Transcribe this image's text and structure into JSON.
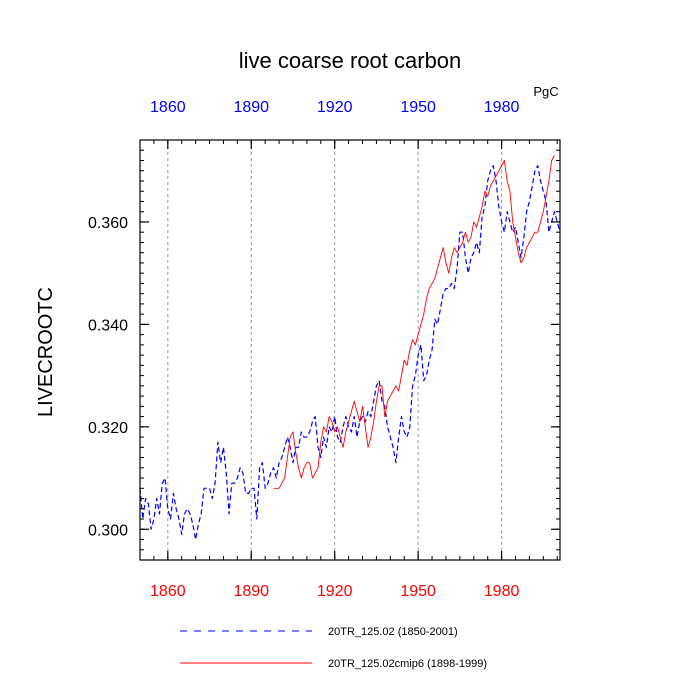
{
  "chart_data": {
    "type": "line",
    "title": "live coarse root carbon",
    "units": "PgC",
    "ylabel": "LIVECROOTC",
    "xlim": [
      1850,
      2001
    ],
    "ylim": [
      0.294,
      0.376
    ],
    "x_ticks": [
      1860,
      1890,
      1920,
      1950,
      1980
    ],
    "x_tick_labels": [
      "1860",
      "1890",
      "1920",
      "1950",
      "1980"
    ],
    "y_ticks": [
      0.3,
      0.32,
      0.34,
      0.36
    ],
    "y_tick_labels": [
      "0.300",
      "0.320",
      "0.340",
      "0.360"
    ],
    "y_minor_step": 0.002,
    "x_minor_step": 5,
    "grid": "vertical-dashed-at-major-x",
    "colors": {
      "top_tick_labels": "#0000ff",
      "bottom_tick_labels": "#ff0000",
      "series1": "#0000ff",
      "series2": "#ff0000",
      "grid": "#999999"
    },
    "legend_placement": "bottom",
    "series": [
      {
        "name": "20TR_125.02 (1850-2001)",
        "style": "dashed",
        "x": [
          1850,
          1851,
          1852,
          1853,
          1854,
          1855,
          1856,
          1857,
          1858,
          1859,
          1860,
          1861,
          1862,
          1863,
          1864,
          1865,
          1866,
          1867,
          1868,
          1869,
          1870,
          1871,
          1872,
          1873,
          1874,
          1875,
          1876,
          1877,
          1878,
          1879,
          1880,
          1881,
          1882,
          1883,
          1884,
          1885,
          1886,
          1887,
          1888,
          1889,
          1890,
          1891,
          1892,
          1893,
          1894,
          1895,
          1896,
          1897,
          1898,
          1899,
          1900,
          1901,
          1902,
          1903,
          1904,
          1905,
          1906,
          1907,
          1908,
          1909,
          1910,
          1911,
          1912,
          1913,
          1914,
          1915,
          1916,
          1917,
          1918,
          1919,
          1920,
          1921,
          1922,
          1923,
          1924,
          1925,
          1926,
          1927,
          1928,
          1929,
          1930,
          1931,
          1932,
          1933,
          1934,
          1935,
          1936,
          1937,
          1938,
          1939,
          1940,
          1941,
          1942,
          1943,
          1944,
          1945,
          1946,
          1947,
          1948,
          1949,
          1950,
          1951,
          1952,
          1953,
          1954,
          1955,
          1956,
          1957,
          1958,
          1959,
          1960,
          1961,
          1962,
          1963,
          1964,
          1965,
          1966,
          1967,
          1968,
          1969,
          1970,
          1971,
          1972,
          1973,
          1974,
          1975,
          1976,
          1977,
          1978,
          1979,
          1980,
          1981,
          1982,
          1983,
          1984,
          1985,
          1986,
          1987,
          1988,
          1989,
          1990,
          1991,
          1992,
          1993,
          1994,
          1995,
          1996,
          1997,
          1998,
          1999,
          2000,
          2001
        ],
        "values": [
          0.308,
          0.302,
          0.306,
          0.305,
          0.3,
          0.302,
          0.306,
          0.303,
          0.309,
          0.31,
          0.304,
          0.302,
          0.307,
          0.304,
          0.302,
          0.299,
          0.303,
          0.304,
          0.303,
          0.301,
          0.298,
          0.301,
          0.303,
          0.308,
          0.308,
          0.308,
          0.306,
          0.309,
          0.317,
          0.313,
          0.316,
          0.311,
          0.303,
          0.309,
          0.309,
          0.31,
          0.312,
          0.311,
          0.307,
          0.307,
          0.308,
          0.308,
          0.302,
          0.312,
          0.313,
          0.308,
          0.309,
          0.311,
          0.312,
          0.31,
          0.313,
          0.314,
          0.316,
          0.318,
          0.316,
          0.313,
          0.316,
          0.316,
          0.319,
          0.318,
          0.318,
          0.319,
          0.321,
          0.322,
          0.316,
          0.314,
          0.318,
          0.316,
          0.32,
          0.319,
          0.322,
          0.318,
          0.317,
          0.32,
          0.322,
          0.32,
          0.319,
          0.322,
          0.318,
          0.321,
          0.322,
          0.321,
          0.323,
          0.322,
          0.325,
          0.328,
          0.329,
          0.325,
          0.324,
          0.32,
          0.318,
          0.316,
          0.313,
          0.318,
          0.322,
          0.319,
          0.318,
          0.32,
          0.328,
          0.33,
          0.334,
          0.336,
          0.329,
          0.33,
          0.333,
          0.335,
          0.341,
          0.34,
          0.343,
          0.346,
          0.347,
          0.347,
          0.348,
          0.347,
          0.351,
          0.358,
          0.358,
          0.353,
          0.35,
          0.353,
          0.354,
          0.356,
          0.354,
          0.361,
          0.363,
          0.368,
          0.37,
          0.371,
          0.368,
          0.363,
          0.36,
          0.358,
          0.362,
          0.36,
          0.358,
          0.359,
          0.356,
          0.353,
          0.357,
          0.362,
          0.364,
          0.367,
          0.37,
          0.371,
          0.368,
          0.366,
          0.364,
          0.358,
          0.36,
          0.362,
          0.36,
          0.358
        ]
      },
      {
        "name": "20TR_125.02cmip6 (1898-1999)",
        "style": "solid",
        "x": [
          1898,
          1899,
          1900,
          1901,
          1902,
          1903,
          1904,
          1905,
          1906,
          1907,
          1908,
          1909,
          1910,
          1911,
          1912,
          1913,
          1914,
          1915,
          1916,
          1917,
          1918,
          1919,
          1920,
          1921,
          1922,
          1923,
          1924,
          1925,
          1926,
          1927,
          1928,
          1929,
          1930,
          1931,
          1932,
          1933,
          1934,
          1935,
          1936,
          1937,
          1938,
          1939,
          1940,
          1941,
          1942,
          1943,
          1944,
          1945,
          1946,
          1947,
          1948,
          1949,
          1950,
          1951,
          1952,
          1953,
          1954,
          1955,
          1956,
          1957,
          1958,
          1959,
          1960,
          1961,
          1962,
          1963,
          1964,
          1965,
          1966,
          1967,
          1968,
          1969,
          1970,
          1971,
          1972,
          1973,
          1974,
          1975,
          1976,
          1977,
          1978,
          1979,
          1980,
          1981,
          1982,
          1983,
          1984,
          1985,
          1986,
          1987,
          1988,
          1989,
          1990,
          1991,
          1992,
          1993,
          1994,
          1995,
          1996,
          1997,
          1998,
          1999
        ],
        "values": [
          0.308,
          0.308,
          0.308,
          0.309,
          0.31,
          0.314,
          0.318,
          0.319,
          0.315,
          0.312,
          0.31,
          0.312,
          0.313,
          0.313,
          0.31,
          0.311,
          0.312,
          0.317,
          0.32,
          0.319,
          0.322,
          0.321,
          0.319,
          0.32,
          0.318,
          0.316,
          0.319,
          0.321,
          0.323,
          0.325,
          0.323,
          0.321,
          0.324,
          0.32,
          0.316,
          0.318,
          0.321,
          0.325,
          0.328,
          0.328,
          0.322,
          0.325,
          0.326,
          0.327,
          0.328,
          0.327,
          0.33,
          0.333,
          0.332,
          0.335,
          0.337,
          0.336,
          0.338,
          0.34,
          0.342,
          0.345,
          0.347,
          0.348,
          0.349,
          0.351,
          0.353,
          0.355,
          0.352,
          0.35,
          0.353,
          0.355,
          0.354,
          0.355,
          0.356,
          0.358,
          0.356,
          0.357,
          0.36,
          0.359,
          0.361,
          0.363,
          0.366,
          0.365,
          0.367,
          0.368,
          0.369,
          0.37,
          0.371,
          0.372,
          0.368,
          0.366,
          0.36,
          0.357,
          0.354,
          0.352,
          0.353,
          0.355,
          0.356,
          0.357,
          0.358,
          0.358,
          0.36,
          0.362,
          0.365,
          0.368,
          0.372,
          0.373
        ]
      }
    ]
  }
}
